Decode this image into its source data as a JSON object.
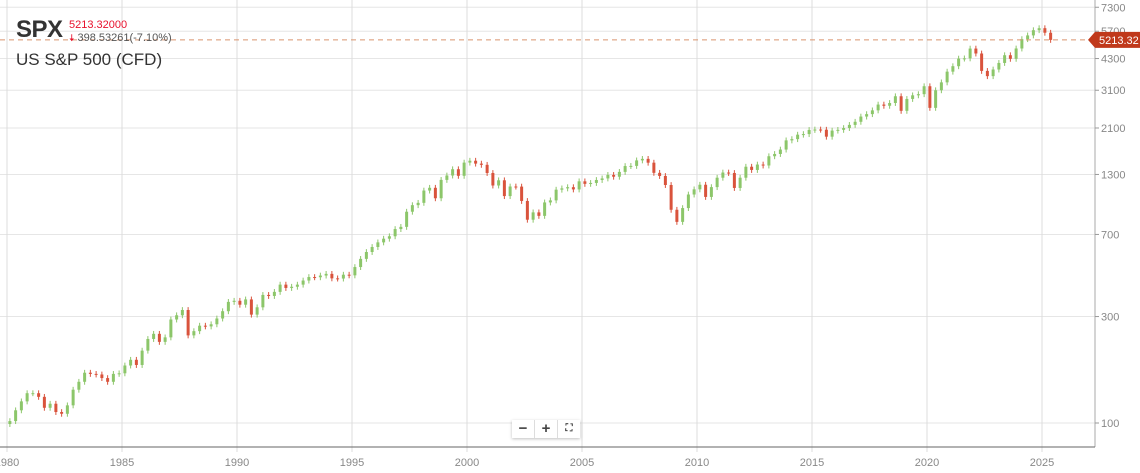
{
  "header": {
    "symbol": "SPX",
    "price": "5213.32000",
    "change": "398.53261(-7.10%)",
    "direction_icon": "arrow-down-icon",
    "name": "US S&P 500 (CFD)"
  },
  "controls": {
    "zoom_out": "−",
    "zoom_in": "+",
    "fullscreen_icon": "fullscreen-icon"
  },
  "colors": {
    "up": "#8cc66a",
    "down": "#d9533c",
    "last_price": "#c0391b",
    "grid": "#e6e6e6"
  },
  "chart_data": {
    "type": "candlestick",
    "yscale": "log",
    "ylim": [
      95,
      7600
    ],
    "y_ticks": [
      "100",
      "300",
      "700",
      "1300",
      "2100",
      "3100",
      "4300",
      "5700",
      "7300"
    ],
    "x_ticks": [
      "1980",
      "1985",
      "1990",
      "1995",
      "2000",
      "2005",
      "2010",
      "2015",
      "2020",
      "2025"
    ],
    "grid": true,
    "last_price": 5213.32,
    "last_price_label": "5213.32",
    "quarterly_closes": {
      "1980": [
        102,
        114,
        125,
        136
      ],
      "1981": [
        136,
        131,
        117,
        122
      ],
      "1982": [
        112,
        110,
        120,
        141
      ],
      "1983": [
        153,
        168,
        166,
        165
      ],
      "1984": [
        159,
        153,
        166,
        167
      ],
      "1985": [
        181,
        192,
        182,
        211
      ],
      "1986": [
        238,
        251,
        231,
        242
      ],
      "1987": [
        291,
        304,
        321,
        247
      ],
      "1988": [
        258,
        273,
        271,
        277
      ],
      "1989": [
        294,
        317,
        349,
        353
      ],
      "1990": [
        339,
        358,
        306,
        330
      ],
      "1991": [
        375,
        371,
        387,
        417
      ],
      "1992": [
        403,
        408,
        417,
        435
      ],
      "1993": [
        451,
        450,
        458,
        466
      ],
      "1994": [
        445,
        444,
        462,
        459
      ],
      "1995": [
        500,
        544,
        584,
        615
      ],
      "1996": [
        645,
        670,
        687,
        740
      ],
      "1997": [
        757,
        885,
        947,
        970
      ],
      "1998": [
        1101,
        1133,
        1017,
        1229
      ],
      "1999": [
        1286,
        1372,
        1282,
        1469
      ],
      "2000": [
        1498,
        1454,
        1436,
        1320
      ],
      "2001": [
        1160,
        1224,
        1040,
        1148
      ],
      "2002": [
        1147,
        989,
        815,
        879
      ],
      "2003": [
        848,
        974,
        995,
        1111
      ],
      "2004": [
        1126,
        1140,
        1114,
        1211
      ],
      "2005": [
        1180,
        1191,
        1228,
        1248
      ],
      "2006": [
        1294,
        1270,
        1335,
        1418
      ],
      "2007": [
        1420,
        1503,
        1527,
        1468
      ],
      "2008": [
        1322,
        1280,
        1166,
        903
      ],
      "2009": [
        797,
        919,
        1057,
        1115
      ],
      "2010": [
        1169,
        1031,
        1141,
        1257
      ],
      "2011": [
        1326,
        1320,
        1131,
        1257
      ],
      "2012": [
        1408,
        1362,
        1440,
        1426
      ],
      "2013": [
        1569,
        1606,
        1681,
        1848
      ],
      "2014": [
        1872,
        1960,
        1972,
        2058
      ],
      "2015": [
        2067,
        2063,
        1920,
        2044
      ],
      "2016": [
        2060,
        2099,
        2168,
        2239
      ],
      "2017": [
        2363,
        2423,
        2519,
        2674
      ],
      "2018": [
        2641,
        2718,
        2914,
        2507
      ],
      "2019": [
        2834,
        2942,
        2977,
        3231
      ],
      "2020": [
        2585,
        3100,
        3363,
        3756
      ],
      "2021": [
        3973,
        4298,
        4308,
        4766
      ],
      "2022": [
        4530,
        3785,
        3586,
        3840
      ],
      "2023": [
        4109,
        4450,
        4288,
        4770
      ],
      "2024": [
        5254,
        5460,
        5762,
        5882
      ],
      "2025": [
        5612,
        5213.32
      ]
    }
  }
}
